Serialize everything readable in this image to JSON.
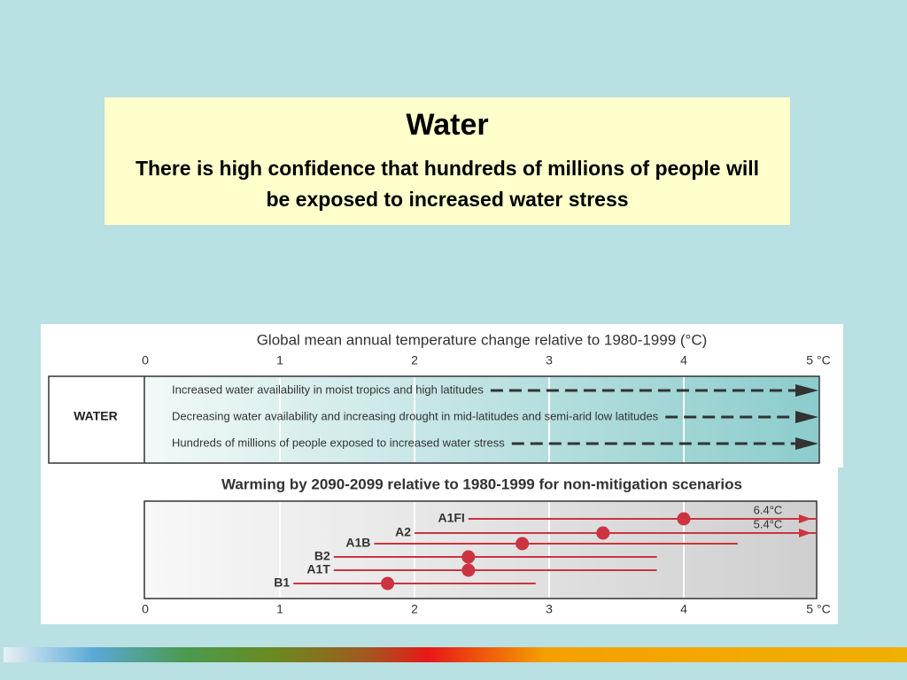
{
  "slide": {
    "title": "Water",
    "text": "There is high confidence that hundreds of millions of people will be exposed to increased water stress"
  },
  "chart_data": [
    {
      "type": "arrow",
      "title": "Global mean annual temperature change relative to 1980-1999 (°C)",
      "row_label": "WATER",
      "categories": [
        "Increased water availability in moist tropics and high latitudes",
        "Decreasing water availability and increasing drought in mid-latitudes and semi-arid low latitudes",
        "Hundreds of millions of people exposed to increased water stress"
      ],
      "xlim": [
        0,
        5
      ],
      "xticks": [
        0,
        1,
        2,
        3,
        4,
        {
          "value": 5,
          "label": "5 °C"
        }
      ]
    },
    {
      "type": "scenario",
      "title": "Warming by 2090-2099 relative to 1980-1999 for non-mitigation scenarios",
      "categories": [
        "A1FI",
        "A2",
        "A1B",
        "B2",
        "A1T",
        "B1"
      ],
      "values": [
        4.0,
        3.4,
        2.8,
        2.4,
        2.4,
        1.8
      ],
      "low": [
        2.4,
        2.0,
        1.7,
        1.4,
        1.4,
        1.1
      ],
      "high": [
        6.4,
        5.4,
        4.4,
        3.8,
        3.8,
        2.9
      ],
      "high_value_labels": [
        "6.4°C",
        "5.4°C",
        null,
        null,
        null,
        null
      ],
      "color": "#cc3340",
      "xlim": [
        0,
        5
      ],
      "xticks": [
        0,
        1,
        2,
        3,
        4,
        {
          "value": 5,
          "label": "5 °C"
        }
      ]
    }
  ]
}
